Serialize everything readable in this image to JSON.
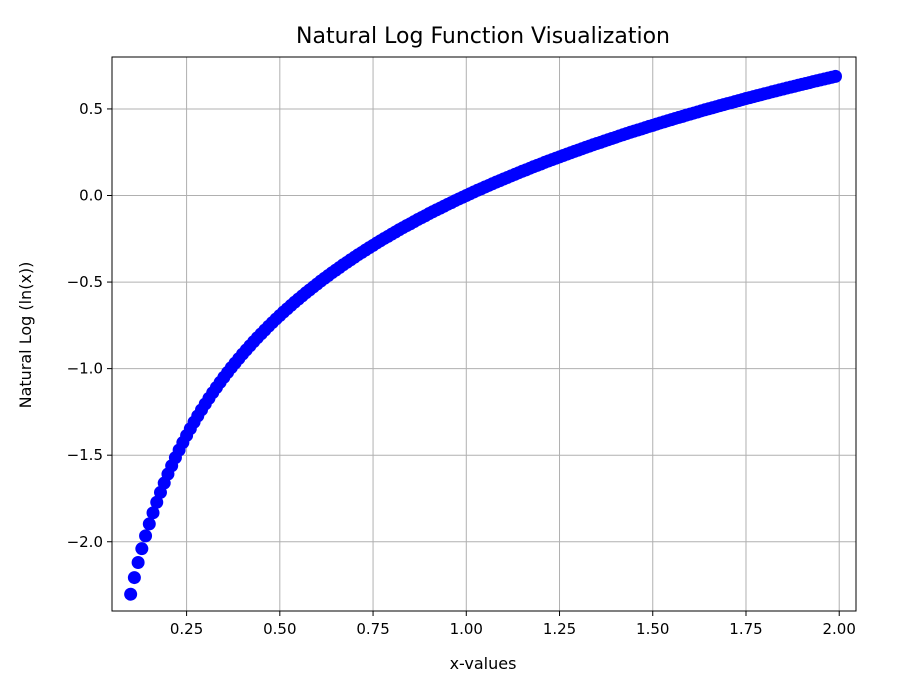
{
  "chart_data": {
    "type": "scatter",
    "title": "Natural Log Function Visualization",
    "xlabel": "x-values",
    "ylabel": "Natural Log (ln(x))",
    "xlim": [
      0.05,
      2.045
    ],
    "ylim": [
      -2.4,
      0.8
    ],
    "grid": true,
    "marker_color": "#0000ff",
    "x_ticks": [
      0.25,
      0.5,
      0.75,
      1.0,
      1.25,
      1.5,
      1.75,
      2.0
    ],
    "x_tick_labels": [
      "0.25",
      "0.50",
      "0.75",
      "1.00",
      "1.25",
      "1.50",
      "1.75",
      "2.00"
    ],
    "y_ticks": [
      0.5,
      0.0,
      -0.5,
      -1.0,
      -1.5,
      -2.0
    ],
    "y_tick_labels": [
      "0.5",
      "0.0",
      "−0.5",
      "−1.0",
      "−1.5",
      "−2.0"
    ],
    "series": [
      {
        "x": [
          0.1,
          0.11,
          0.12,
          0.13,
          0.14,
          0.15,
          0.16,
          0.17,
          0.18,
          0.19,
          0.2,
          0.21,
          0.22,
          0.23,
          0.24,
          0.25,
          0.26,
          0.27,
          0.28,
          0.29,
          0.3,
          0.31,
          0.32,
          0.33,
          0.34,
          0.35,
          0.36,
          0.37,
          0.38,
          0.39,
          0.4,
          0.41,
          0.42,
          0.43,
          0.44,
          0.45,
          0.46,
          0.47,
          0.48,
          0.49,
          0.5,
          0.51,
          0.52,
          0.53,
          0.54,
          0.55,
          0.56,
          0.57,
          0.58,
          0.59,
          0.6,
          0.61,
          0.62,
          0.63,
          0.64,
          0.65,
          0.66,
          0.67,
          0.68,
          0.69,
          0.7,
          0.71,
          0.72,
          0.73,
          0.74,
          0.75,
          0.76,
          0.77,
          0.78,
          0.79,
          0.8,
          0.81,
          0.82,
          0.83,
          0.84,
          0.85,
          0.86,
          0.87,
          0.88,
          0.89,
          0.9,
          0.91,
          0.92,
          0.93,
          0.94,
          0.95,
          0.96,
          0.97,
          0.98,
          0.99,
          1.0,
          1.01,
          1.02,
          1.03,
          1.04,
          1.05,
          1.06,
          1.07,
          1.08,
          1.09,
          1.1,
          1.11,
          1.12,
          1.13,
          1.14,
          1.15,
          1.16,
          1.17,
          1.18,
          1.19,
          1.2,
          1.21,
          1.22,
          1.23,
          1.24,
          1.25,
          1.26,
          1.27,
          1.28,
          1.29,
          1.3,
          1.31,
          1.32,
          1.33,
          1.34,
          1.35,
          1.36,
          1.37,
          1.38,
          1.39,
          1.4,
          1.41,
          1.42,
          1.43,
          1.44,
          1.45,
          1.46,
          1.47,
          1.48,
          1.49,
          1.5,
          1.51,
          1.52,
          1.53,
          1.54,
          1.55,
          1.56,
          1.57,
          1.58,
          1.59,
          1.6,
          1.61,
          1.62,
          1.63,
          1.64,
          1.65,
          1.66,
          1.67,
          1.68,
          1.69,
          1.7,
          1.71,
          1.72,
          1.73,
          1.74,
          1.75,
          1.76,
          1.77,
          1.78,
          1.79,
          1.8,
          1.81,
          1.82,
          1.83,
          1.84,
          1.85,
          1.86,
          1.87,
          1.88,
          1.89,
          1.9,
          1.91,
          1.92,
          1.93,
          1.94,
          1.95,
          1.96,
          1.97,
          1.98,
          1.99
        ],
        "y": [
          -2.303,
          -2.207,
          -2.12,
          -2.04,
          -1.966,
          -1.897,
          -1.833,
          -1.772,
          -1.715,
          -1.661,
          -1.609,
          -1.561,
          -1.514,
          -1.47,
          -1.427,
          -1.386,
          -1.347,
          -1.309,
          -1.273,
          -1.238,
          -1.204,
          -1.171,
          -1.139,
          -1.109,
          -1.079,
          -1.05,
          -1.022,
          -0.994,
          -0.968,
          -0.942,
          -0.916,
          -0.892,
          -0.868,
          -0.844,
          -0.821,
          -0.799,
          -0.777,
          -0.755,
          -0.734,
          -0.713,
          -0.693,
          -0.673,
          -0.654,
          -0.635,
          -0.616,
          -0.598,
          -0.58,
          -0.562,
          -0.545,
          -0.528,
          -0.511,
          -0.494,
          -0.478,
          -0.462,
          -0.446,
          -0.431,
          -0.416,
          -0.4,
          -0.386,
          -0.371,
          -0.357,
          -0.342,
          -0.329,
          -0.315,
          -0.301,
          -0.288,
          -0.274,
          -0.261,
          -0.248,
          -0.236,
          -0.223,
          -0.211,
          -0.198,
          -0.186,
          -0.174,
          -0.163,
          -0.151,
          -0.139,
          -0.128,
          -0.117,
          -0.105,
          -0.094,
          -0.083,
          -0.073,
          -0.062,
          -0.051,
          -0.041,
          -0.03,
          -0.02,
          -0.01,
          0.0,
          0.01,
          0.02,
          0.03,
          0.039,
          0.049,
          0.058,
          0.068,
          0.077,
          0.086,
          0.095,
          0.104,
          0.113,
          0.122,
          0.131,
          0.14,
          0.148,
          0.157,
          0.166,
          0.174,
          0.182,
          0.191,
          0.199,
          0.207,
          0.215,
          0.223,
          0.231,
          0.239,
          0.247,
          0.255,
          0.262,
          0.27,
          0.278,
          0.285,
          0.293,
          0.3,
          0.307,
          0.315,
          0.322,
          0.329,
          0.336,
          0.344,
          0.351,
          0.358,
          0.365,
          0.372,
          0.378,
          0.385,
          0.392,
          0.399,
          0.405,
          0.412,
          0.419,
          0.425,
          0.432,
          0.438,
          0.445,
          0.451,
          0.457,
          0.464,
          0.47,
          0.476,
          0.482,
          0.489,
          0.495,
          0.501,
          0.507,
          0.513,
          0.519,
          0.525,
          0.531,
          0.536,
          0.542,
          0.548,
          0.554,
          0.56,
          0.565,
          0.571,
          0.577,
          0.582,
          0.588,
          0.593,
          0.599,
          0.604,
          0.61,
          0.615,
          0.621,
          0.626,
          0.631,
          0.637,
          0.642,
          0.647,
          0.652,
          0.658,
          0.663,
          0.668,
          0.673,
          0.678,
          0.683,
          0.688
        ]
      }
    ]
  }
}
